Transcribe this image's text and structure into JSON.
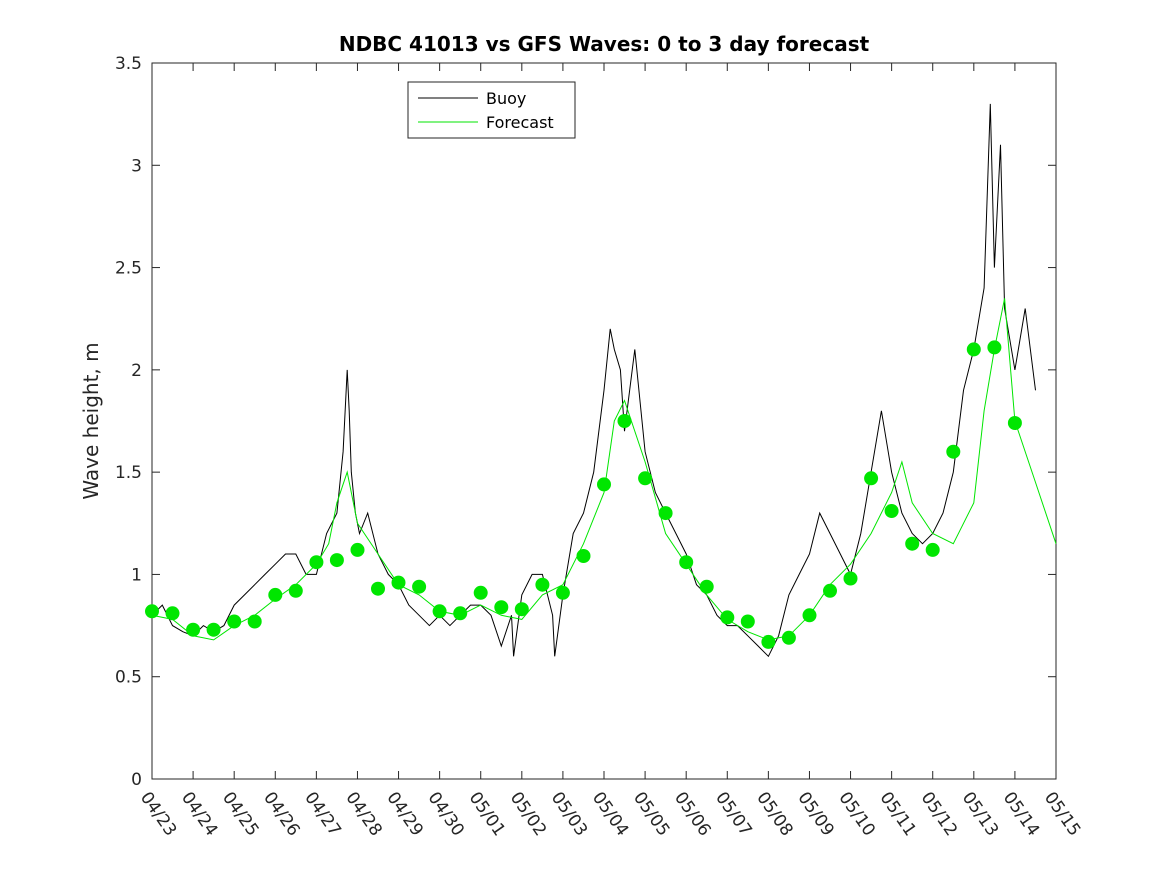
{
  "chart_data": {
    "type": "line",
    "title": "NDBC 41013 vs GFS Waves: 0 to 3 day forecast",
    "xlabel": "",
    "ylabel": "Wave height, m",
    "ylim": [
      0,
      3.5
    ],
    "xlim": [
      0,
      22
    ],
    "y_ticks": [
      "0",
      "0.5",
      "1",
      "1.5",
      "2",
      "2.5",
      "3",
      "3.5"
    ],
    "x_tick_labels": [
      "04/23",
      "04/24",
      "04/25",
      "04/26",
      "04/27",
      "04/28",
      "04/29",
      "04/30",
      "05/01",
      "05/02",
      "05/03",
      "05/04",
      "05/05",
      "05/06",
      "05/07",
      "05/08",
      "05/09",
      "05/10",
      "05/11",
      "05/12",
      "05/13",
      "05/14",
      "05/15"
    ],
    "x_units": "days since 04/23",
    "legend_position": "top-left",
    "grid": false,
    "colors": {
      "buoy": "#000000",
      "forecast": "#00e600",
      "axes": "#262626"
    },
    "series": [
      {
        "name": "Buoy",
        "kind": "line",
        "x": [
          0,
          0.25,
          0.5,
          0.75,
          1,
          1.25,
          1.5,
          1.75,
          2,
          2.25,
          2.5,
          2.75,
          3,
          3.25,
          3.5,
          3.75,
          4,
          4.25,
          4.5,
          4.65,
          4.75,
          4.8,
          4.85,
          4.95,
          5.05,
          5.25,
          5.5,
          5.75,
          6,
          6.25,
          6.5,
          6.75,
          7,
          7.25,
          7.5,
          7.75,
          8,
          8.25,
          8.5,
          8.75,
          8.8,
          9,
          9.25,
          9.5,
          9.75,
          9.8,
          10,
          10.25,
          10.5,
          10.75,
          11,
          11.15,
          11.25,
          11.4,
          11.5,
          11.75,
          12,
          12.25,
          12.5,
          12.75,
          13,
          13.25,
          13.5,
          13.75,
          14,
          14.25,
          14.5,
          14.75,
          15,
          15.25,
          15.5,
          15.75,
          16,
          16.25,
          16.5,
          16.75,
          17,
          17.25,
          17.5,
          17.75,
          18,
          18.25,
          18.5,
          18.75,
          19,
          19.25,
          19.5,
          19.75,
          20,
          20.25,
          20.4,
          20.5,
          20.65,
          20.75,
          21,
          21.25,
          21.5
        ],
        "y": [
          0.8,
          0.85,
          0.75,
          0.72,
          0.7,
          0.75,
          0.72,
          0.75,
          0.85,
          0.9,
          0.95,
          1.0,
          1.05,
          1.1,
          1.1,
          1.0,
          1.0,
          1.2,
          1.3,
          1.6,
          2.0,
          1.8,
          1.5,
          1.3,
          1.2,
          1.3,
          1.1,
          1.0,
          0.95,
          0.85,
          0.8,
          0.75,
          0.8,
          0.75,
          0.8,
          0.85,
          0.85,
          0.8,
          0.65,
          0.8,
          0.6,
          0.9,
          1.0,
          1.0,
          0.8,
          0.6,
          0.9,
          1.2,
          1.3,
          1.5,
          1.9,
          2.2,
          2.1,
          2.0,
          1.7,
          2.1,
          1.6,
          1.4,
          1.3,
          1.2,
          1.1,
          0.95,
          0.9,
          0.8,
          0.75,
          0.75,
          0.7,
          0.65,
          0.6,
          0.7,
          0.9,
          1.0,
          1.1,
          1.3,
          1.2,
          1.1,
          1.0,
          1.2,
          1.5,
          1.8,
          1.5,
          1.3,
          1.2,
          1.15,
          1.2,
          1.3,
          1.5,
          1.9,
          2.1,
          2.4,
          3.3,
          2.5,
          3.1,
          2.3,
          2.0,
          2.3,
          1.9
        ]
      },
      {
        "name": "Forecast",
        "kind": "line",
        "x": [
          0,
          0.5,
          1,
          1.5,
          2,
          2.5,
          3,
          3.5,
          4,
          4.3,
          4.5,
          4.75,
          5,
          5.5,
          6,
          6.5,
          7,
          7.5,
          8,
          8.5,
          9,
          9.5,
          10,
          10.5,
          11,
          11.25,
          11.5,
          12,
          12.5,
          13,
          13.5,
          14,
          14.5,
          15,
          15.5,
          16,
          16.5,
          17,
          17.5,
          18,
          18.25,
          18.5,
          19,
          19.5,
          20,
          20.25,
          20.5,
          20.75,
          21,
          21.5,
          22
        ],
        "y": [
          0.8,
          0.78,
          0.7,
          0.68,
          0.75,
          0.8,
          0.88,
          0.95,
          1.05,
          1.15,
          1.35,
          1.5,
          1.25,
          1.1,
          0.95,
          0.9,
          0.82,
          0.8,
          0.85,
          0.8,
          0.78,
          0.9,
          0.95,
          1.15,
          1.4,
          1.75,
          1.85,
          1.55,
          1.2,
          1.05,
          0.9,
          0.78,
          0.72,
          0.68,
          0.7,
          0.8,
          0.95,
          1.05,
          1.2,
          1.4,
          1.55,
          1.35,
          1.2,
          1.15,
          1.35,
          1.8,
          2.1,
          2.35,
          1.75,
          1.45,
          1.15
        ]
      },
      {
        "name": "Forecast",
        "kind": "markers",
        "x": [
          0,
          0.5,
          1,
          1.5,
          2,
          2.5,
          3,
          3.5,
          4,
          4.5,
          5,
          5.5,
          6,
          6.5,
          7,
          7.5,
          8,
          8.5,
          9,
          9.5,
          10,
          10.5,
          11,
          11.5,
          12,
          12.5,
          13,
          13.5,
          14,
          14.5,
          15,
          15.5,
          16,
          16.5,
          17,
          17.5,
          18,
          18.5,
          19,
          19.5,
          20,
          20.5,
          21
        ],
        "y": [
          0.82,
          0.81,
          0.73,
          0.73,
          0.77,
          0.77,
          0.9,
          0.92,
          1.06,
          1.07,
          1.12,
          0.93,
          0.96,
          0.94,
          0.82,
          0.81,
          0.91,
          0.84,
          0.83,
          0.95,
          0.91,
          1.09,
          1.44,
          1.75,
          1.47,
          1.3,
          1.06,
          0.94,
          0.79,
          0.77,
          0.67,
          0.69,
          0.8,
          0.92,
          0.98,
          1.47,
          1.31,
          1.15,
          1.12,
          1.6,
          2.1,
          2.11,
          1.74
        ]
      }
    ]
  }
}
